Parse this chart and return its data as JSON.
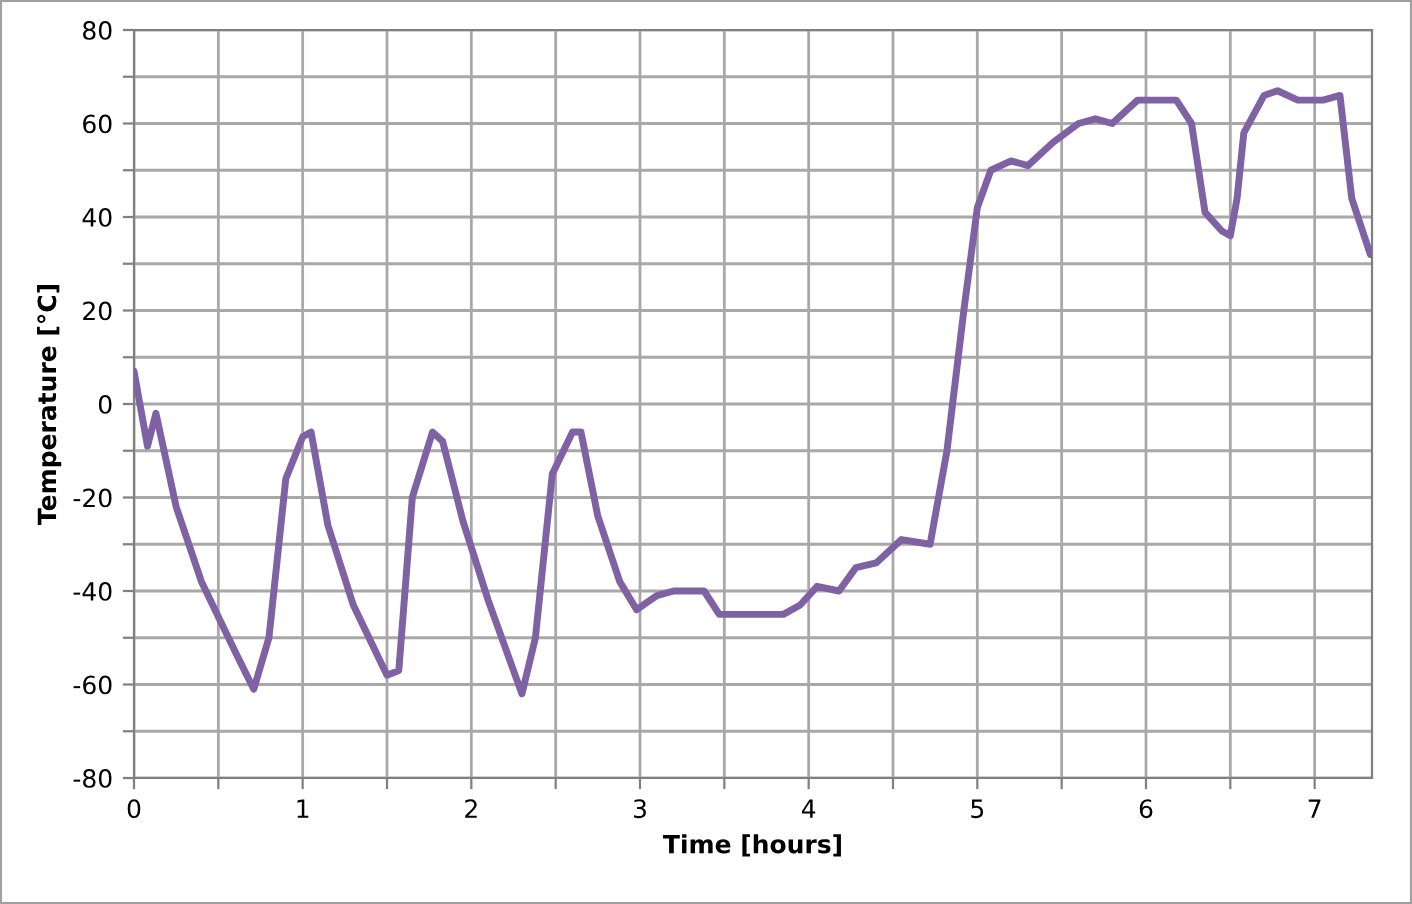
{
  "chart_data": {
    "type": "line",
    "xlabel": "Time [hours]",
    "ylabel": "Temperature [°C]",
    "x": [
      0,
      0.08,
      0.13,
      0.25,
      0.4,
      0.6,
      0.71,
      0.8,
      0.9,
      1.0,
      1.05,
      1.15,
      1.3,
      1.5,
      1.57,
      1.65,
      1.77,
      1.83,
      1.95,
      2.1,
      2.3,
      2.38,
      2.48,
      2.6,
      2.65,
      2.75,
      2.88,
      2.98,
      3.1,
      3.2,
      3.38,
      3.47,
      3.6,
      3.85,
      3.95,
      4.05,
      4.18,
      4.28,
      4.4,
      4.55,
      4.72,
      4.82,
      4.92,
      5.0,
      5.08,
      5.2,
      5.3,
      5.45,
      5.6,
      5.7,
      5.8,
      5.95,
      6.1,
      6.18,
      6.27,
      6.35,
      6.45,
      6.5,
      6.54,
      6.58,
      6.7,
      6.78,
      6.9,
      7.05,
      7.15,
      7.22,
      7.33
    ],
    "series": [
      {
        "color": "#7f62a4",
        "values": [
          7,
          -9,
          -2,
          -22,
          -38,
          -53,
          -61,
          -50,
          -16,
          -7,
          -6,
          -26,
          -43,
          -58,
          -57,
          -20,
          -6,
          -8,
          -25,
          -42,
          -62,
          -50,
          -15,
          -6,
          -6,
          -24,
          -38,
          -44,
          -41,
          -40,
          -40,
          -45,
          -45,
          -45,
          -43,
          -39,
          -40,
          -35,
          -34,
          -29,
          -30,
          -10,
          20,
          42,
          50,
          52,
          51,
          56,
          60,
          61,
          60,
          65,
          65,
          65,
          60,
          41,
          37,
          36,
          44,
          58,
          66,
          67,
          65,
          65,
          66,
          44,
          32
        ]
      }
    ],
    "xlim": [
      0,
      7.34
    ],
    "xticks": [
      0,
      {
        "value": 0.5,
        "label": null
      },
      1,
      {
        "value": 1.5,
        "label": null
      },
      2,
      {
        "value": 2.5,
        "label": null
      },
      3,
      {
        "value": 3.5,
        "label": null
      },
      4,
      {
        "value": 4.5,
        "label": null
      },
      5,
      {
        "value": 5.5,
        "label": null
      },
      6,
      {
        "value": 6.5,
        "label": null
      },
      7
    ],
    "ylim": [
      -80,
      80
    ],
    "yticks": [
      -80,
      {
        "value": -70,
        "label": null
      },
      -60,
      {
        "value": -50,
        "label": null
      },
      -40,
      {
        "value": -30,
        "label": null
      },
      -20,
      {
        "value": -10,
        "label": null
      },
      0,
      {
        "value": 10,
        "label": null
      },
      20,
      {
        "value": 30,
        "label": null
      },
      40,
      {
        "value": 50,
        "label": null
      },
      60,
      {
        "value": 70,
        "label": null
      },
      80
    ],
    "grid": true,
    "line_style": "solid",
    "marker": "none"
  }
}
